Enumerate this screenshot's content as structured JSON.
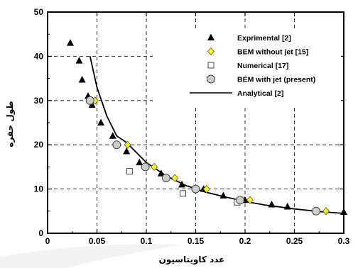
{
  "chart_data": {
    "type": "scatter",
    "xlabel": "عدد کاویتاسیون",
    "ylabel": "طول حفره",
    "xlim": [
      0,
      0.3
    ],
    "ylim": [
      0,
      50
    ],
    "xticks": [
      0,
      0.05,
      0.1,
      0.15,
      0.2,
      0.25,
      0.3
    ],
    "xtick_labels": [
      "0",
      "0.05",
      "0.1",
      "0.15",
      "0.2",
      "0.25",
      "0.3"
    ],
    "yticks": [
      0,
      10,
      20,
      30,
      40,
      50
    ],
    "ytick_labels": [
      "0",
      "10",
      "20",
      "30",
      "40",
      "50"
    ],
    "grid": "dashed",
    "legend_position": "top-right",
    "series": [
      {
        "name": "Exprimental [2]",
        "marker": "triangle",
        "color": "#000000",
        "points": [
          [
            0.023,
            43
          ],
          [
            0.032,
            39
          ],
          [
            0.035,
            34.7
          ],
          [
            0.041,
            31
          ],
          [
            0.045,
            29
          ],
          [
            0.054,
            25
          ],
          [
            0.066,
            22
          ],
          [
            0.08,
            18.5
          ],
          [
            0.093,
            16
          ],
          [
            0.115,
            13.5
          ],
          [
            0.136,
            11
          ],
          [
            0.158,
            10
          ],
          [
            0.178,
            8.5
          ],
          [
            0.2,
            7.5
          ],
          [
            0.227,
            6.5
          ],
          [
            0.243,
            6
          ],
          [
            0.3,
            4.8
          ]
        ]
      },
      {
        "name": "BEM without jet [15]",
        "marker": "diamond",
        "color": "#ffff00",
        "points": [
          [
            0.048,
            30
          ],
          [
            0.081,
            20
          ],
          [
            0.108,
            15
          ],
          [
            0.129,
            12.5
          ],
          [
            0.161,
            10
          ],
          [
            0.205,
            7.5
          ],
          [
            0.282,
            5
          ]
        ]
      },
      {
        "name": "Numerical [17]",
        "marker": "square",
        "color": "#ffffff",
        "points": [
          [
            0.083,
            14
          ],
          [
            0.137,
            9
          ],
          [
            0.192,
            7
          ]
        ]
      },
      {
        "name": "BEM with jet (present)",
        "marker": "circle",
        "color": "#cccccc",
        "points": [
          [
            0.043,
            30
          ],
          [
            0.07,
            20
          ],
          [
            0.099,
            15
          ],
          [
            0.12,
            12.5
          ],
          [
            0.15,
            10
          ],
          [
            0.195,
            7.5
          ],
          [
            0.272,
            5
          ]
        ]
      },
      {
        "name": "Analytical [2]",
        "marker": "line",
        "color": "#000000",
        "points": [
          [
            0.043,
            40
          ],
          [
            0.05,
            33
          ],
          [
            0.06,
            26.5
          ],
          [
            0.07,
            22
          ],
          [
            0.08,
            20.5
          ],
          [
            0.1,
            16
          ],
          [
            0.12,
            13
          ],
          [
            0.14,
            10.8
          ],
          [
            0.16,
            9.3
          ],
          [
            0.18,
            8.2
          ],
          [
            0.2,
            7.2
          ],
          [
            0.22,
            6.4
          ],
          [
            0.25,
            5.5
          ],
          [
            0.28,
            4.8
          ],
          [
            0.3,
            4.5
          ]
        ]
      }
    ]
  }
}
